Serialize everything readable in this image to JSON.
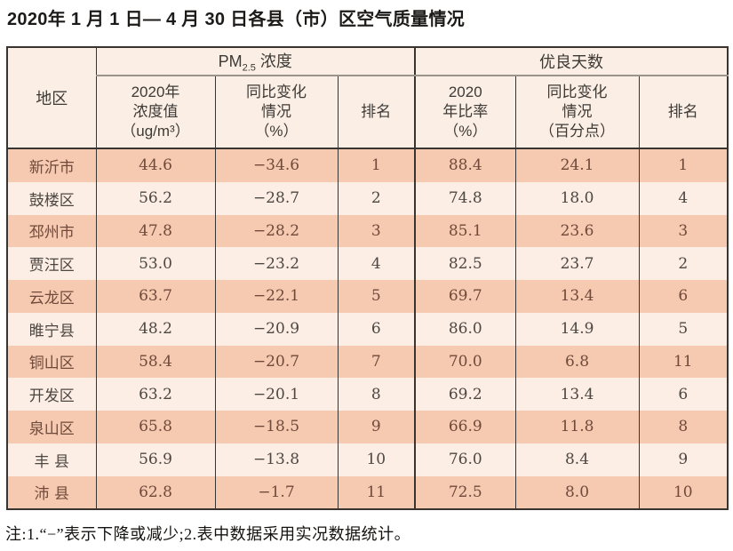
{
  "title": "2020年 1 月 1 日— 4 月 30 日各县（市）区空气质量情况",
  "footnote": "注:1.“−”表示下降或减少;2.表中数据采用实况数据统计。",
  "table": {
    "region_header": "地区",
    "pm_group": {
      "prefix": "PM",
      "sub": "2.5",
      "suffix": " 浓度"
    },
    "good_group": "优良天数",
    "subheaders": {
      "pm_value": "2020年\n浓度值\n（ug/m³）",
      "pm_change": "同比变化\n情况\n（%）",
      "pm_rank": "排名",
      "ratio": "2020\n年比率\n（%）",
      "ratio_change": "同比变化\n情况\n（百分点）",
      "rank": "排名"
    }
  },
  "colors": {
    "row_odd_bg": "#f6c9b1",
    "row_even_bg": "#fcede5",
    "header_bg": "#fbeee5",
    "border_dark": "#39342f",
    "border_gray": "#9b948d",
    "odd_text": "#6f4a3a",
    "even_text": "#4d4742"
  },
  "chart_data": {
    "type": "table",
    "title": "2020年1月1日—4月30日各县（市）区空气质量情况",
    "column_groups": [
      "地区",
      "PM2.5浓度",
      "优良天数"
    ],
    "columns": [
      "地区",
      "PM2.5浓度 2020年浓度值（ug/m³）",
      "PM2.5浓度 同比变化情况（%）",
      "PM2.5浓度 排名",
      "优良天数 2020年比率（%）",
      "优良天数 同比变化情况（百分点）",
      "优良天数 排名"
    ],
    "rows": [
      [
        "新沂市",
        "44.6",
        "−34.6",
        "1",
        "88.4",
        "24.1",
        "1"
      ],
      [
        "鼓楼区",
        "56.2",
        "−28.7",
        "2",
        "74.8",
        "18.0",
        "4"
      ],
      [
        "邳州市",
        "47.8",
        "−28.2",
        "3",
        "85.1",
        "23.6",
        "3"
      ],
      [
        "贾汪区",
        "53.0",
        "−23.2",
        "4",
        "82.5",
        "23.7",
        "2"
      ],
      [
        "云龙区",
        "63.7",
        "−22.1",
        "5",
        "69.7",
        "13.4",
        "6"
      ],
      [
        "睢宁县",
        "48.2",
        "−20.9",
        "6",
        "86.0",
        "14.9",
        "5"
      ],
      [
        "铜山区",
        "58.4",
        "−20.7",
        "7",
        "70.0",
        "6.8",
        "11"
      ],
      [
        "开发区",
        "63.2",
        "−20.1",
        "8",
        "69.2",
        "13.4",
        "6"
      ],
      [
        "泉山区",
        "65.8",
        "−18.5",
        "9",
        "66.9",
        "11.8",
        "8"
      ],
      [
        "丰 县",
        "56.9",
        "−13.8",
        "10",
        "76.0",
        "8.4",
        "9"
      ],
      [
        "沛 县",
        "62.8",
        "−1.7",
        "11",
        "72.5",
        "8.0",
        "10"
      ]
    ],
    "footnote": "注:1.“−”表示下降或减少;2.表中数据采用实况数据统计。"
  }
}
